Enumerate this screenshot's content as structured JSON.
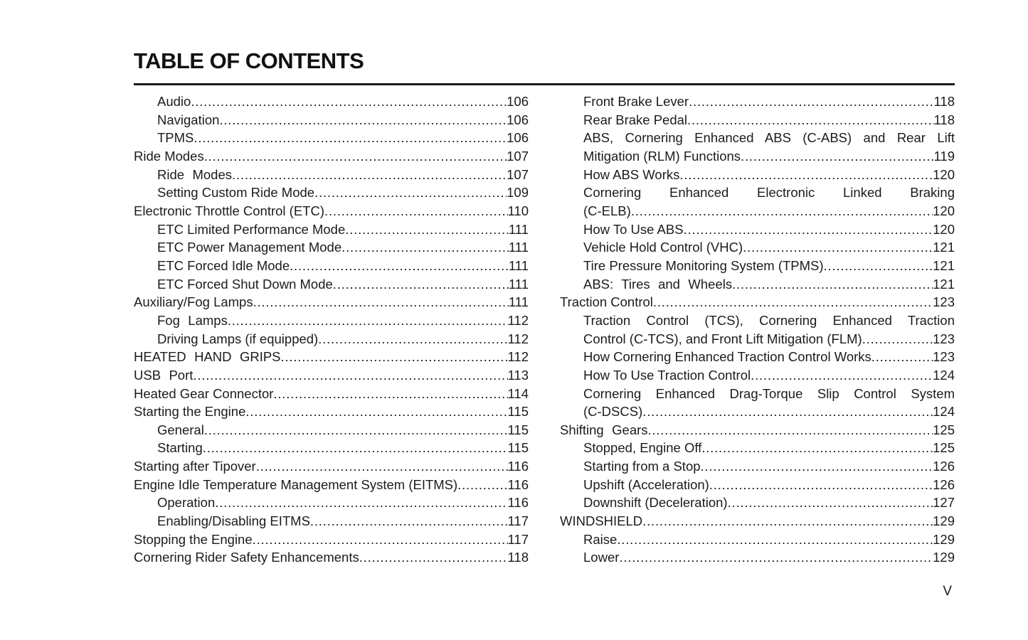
{
  "title": "TABLE OF CONTENTS",
  "footer": {
    "page_label": "V"
  },
  "toc": {
    "left_column": [
      {
        "lines": [
          "Audio"
        ],
        "page": "106",
        "indent": true
      },
      {
        "lines": [
          "Navigation"
        ],
        "page": "106",
        "indent": true
      },
      {
        "lines": [
          "TPMS"
        ],
        "page": "106",
        "indent": true
      },
      {
        "lines": [
          "Ride Modes"
        ],
        "page": "107",
        "indent": false
      },
      {
        "lines": [
          "Ride Modes"
        ],
        "page": "107",
        "indent": true,
        "spread": true
      },
      {
        "lines": [
          "Setting Custom Ride Mode"
        ],
        "page": "109",
        "indent": true
      },
      {
        "lines": [
          "Electronic Throttle Control (ETC)"
        ],
        "page": "110",
        "indent": false
      },
      {
        "lines": [
          "ETC Limited Performance Mode"
        ],
        "page": "111",
        "indent": true
      },
      {
        "lines": [
          "ETC Power Management Mode"
        ],
        "page": "111",
        "indent": true
      },
      {
        "lines": [
          "ETC Forced Idle Mode"
        ],
        "page": "111",
        "indent": true
      },
      {
        "lines": [
          "ETC Forced Shut Down Mode"
        ],
        "page": "111",
        "indent": true
      },
      {
        "lines": [
          "Auxiliary/Fog Lamps"
        ],
        "page": "111",
        "indent": false
      },
      {
        "lines": [
          "Fog Lamps"
        ],
        "page": "112",
        "indent": true,
        "spread": true
      },
      {
        "lines": [
          "Driving Lamps (if equipped)"
        ],
        "page": "112",
        "indent": true
      },
      {
        "lines": [
          "HEATED HAND GRIPS"
        ],
        "page": "112",
        "indent": false,
        "spread": true
      },
      {
        "lines": [
          "USB Port"
        ],
        "page": "113",
        "indent": false,
        "spread": true
      },
      {
        "lines": [
          "Heated Gear Connector"
        ],
        "page": "114",
        "indent": false
      },
      {
        "lines": [
          "Starting the Engine"
        ],
        "page": "115",
        "indent": false
      },
      {
        "lines": [
          "General"
        ],
        "page": "115",
        "indent": true
      },
      {
        "lines": [
          "Starting"
        ],
        "page": "115",
        "indent": true
      },
      {
        "lines": [
          "Starting after Tipover"
        ],
        "page": "116",
        "indent": false
      },
      {
        "lines": [
          "Engine Idle Temperature Management System (EITMS)"
        ],
        "page": "116",
        "indent": false
      },
      {
        "lines": [
          "Operation"
        ],
        "page": "116",
        "indent": true
      },
      {
        "lines": [
          "Enabling/Disabling EITMS"
        ],
        "page": "117",
        "indent": true
      },
      {
        "lines": [
          "Stopping the Engine"
        ],
        "page": "117",
        "indent": false
      },
      {
        "lines": [
          "Cornering Rider Safety Enhancements"
        ],
        "page": "118",
        "indent": false
      }
    ],
    "right_column": [
      {
        "lines": [
          "Front Brake Lever"
        ],
        "page": "118",
        "indent": true
      },
      {
        "lines": [
          "Rear Brake Pedal"
        ],
        "page": "118",
        "indent": true
      },
      {
        "lines": [
          "ABS, Cornering Enhanced ABS (C-ABS) and Rear Lift",
          "Mitigation (RLM) Functions"
        ],
        "page": "119",
        "indent": true
      },
      {
        "lines": [
          "How ABS Works"
        ],
        "page": "120",
        "indent": true
      },
      {
        "lines": [
          "Cornering Enhanced Electronic Linked Braking",
          "(C-ELB)"
        ],
        "page": "120",
        "indent": true
      },
      {
        "lines": [
          "How To Use ABS"
        ],
        "page": "120",
        "indent": true
      },
      {
        "lines": [
          "Vehicle Hold Control (VHC)"
        ],
        "page": "121",
        "indent": true
      },
      {
        "lines": [
          "Tire Pressure Monitoring System (TPMS)"
        ],
        "page": "121",
        "indent": true
      },
      {
        "lines": [
          "ABS: Tires and Wheels"
        ],
        "page": "121",
        "indent": true,
        "spread": true
      },
      {
        "lines": [
          "Traction Control"
        ],
        "page": "123",
        "indent": false
      },
      {
        "lines": [
          "Traction Control (TCS), Cornering Enhanced Traction",
          "Control (C-TCS), and Front Lift Mitigation (FLM)"
        ],
        "page": "123",
        "indent": true
      },
      {
        "lines": [
          "How Cornering Enhanced Traction Control Works"
        ],
        "page": "123",
        "indent": true
      },
      {
        "lines": [
          "How To Use Traction Control"
        ],
        "page": "124",
        "indent": true
      },
      {
        "lines": [
          "Cornering Enhanced Drag-Torque Slip Control System",
          "(C-DSCS)"
        ],
        "page": "124",
        "indent": true
      },
      {
        "lines": [
          "Shifting Gears"
        ],
        "page": "125",
        "indent": false,
        "spread": true
      },
      {
        "lines": [
          "Stopped, Engine Off"
        ],
        "page": "125",
        "indent": true
      },
      {
        "lines": [
          "Starting from a Stop"
        ],
        "page": "126",
        "indent": true
      },
      {
        "lines": [
          "Upshift (Acceleration)"
        ],
        "page": "126",
        "indent": true
      },
      {
        "lines": [
          "Downshift (Deceleration)"
        ],
        "page": "127",
        "indent": true
      },
      {
        "lines": [
          "WINDSHIELD"
        ],
        "page": "129",
        "indent": false
      },
      {
        "lines": [
          "Raise"
        ],
        "page": "129",
        "indent": true
      },
      {
        "lines": [
          "Lower"
        ],
        "page": "129",
        "indent": true
      }
    ]
  }
}
